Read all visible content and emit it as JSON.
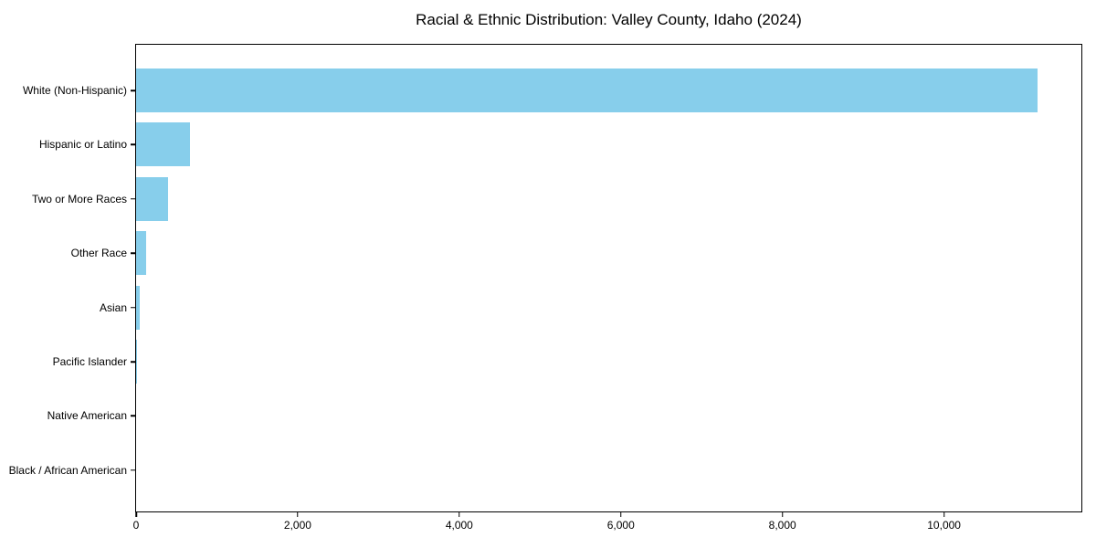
{
  "chart_data": {
    "type": "bar",
    "orientation": "horizontal",
    "title": "Racial & Ethnic Distribution: Valley County, Idaho (2024)",
    "categories": [
      "White (Non-Hispanic)",
      "Hispanic or Latino",
      "Two or More Races",
      "Other Race",
      "Asian",
      "Pacific Islander",
      "Native American",
      "Black / African American"
    ],
    "values": [
      11160,
      670,
      400,
      125,
      40,
      10,
      0,
      0
    ],
    "xlabel": "",
    "ylabel": "",
    "xlim": [
      0,
      11700
    ],
    "xticks": [
      {
        "value": 0,
        "label": "0"
      },
      {
        "value": 2000,
        "label": "2,000"
      },
      {
        "value": 4000,
        "label": "4,000"
      },
      {
        "value": 6000,
        "label": "6,000"
      },
      {
        "value": 8000,
        "label": "8,000"
      },
      {
        "value": 10000,
        "label": "10,000"
      }
    ],
    "grid": false,
    "legend": null,
    "colors": {
      "bar": "#87CEEB",
      "axis": "#000000",
      "text": "#000000",
      "background": "#FFFFFF"
    }
  }
}
